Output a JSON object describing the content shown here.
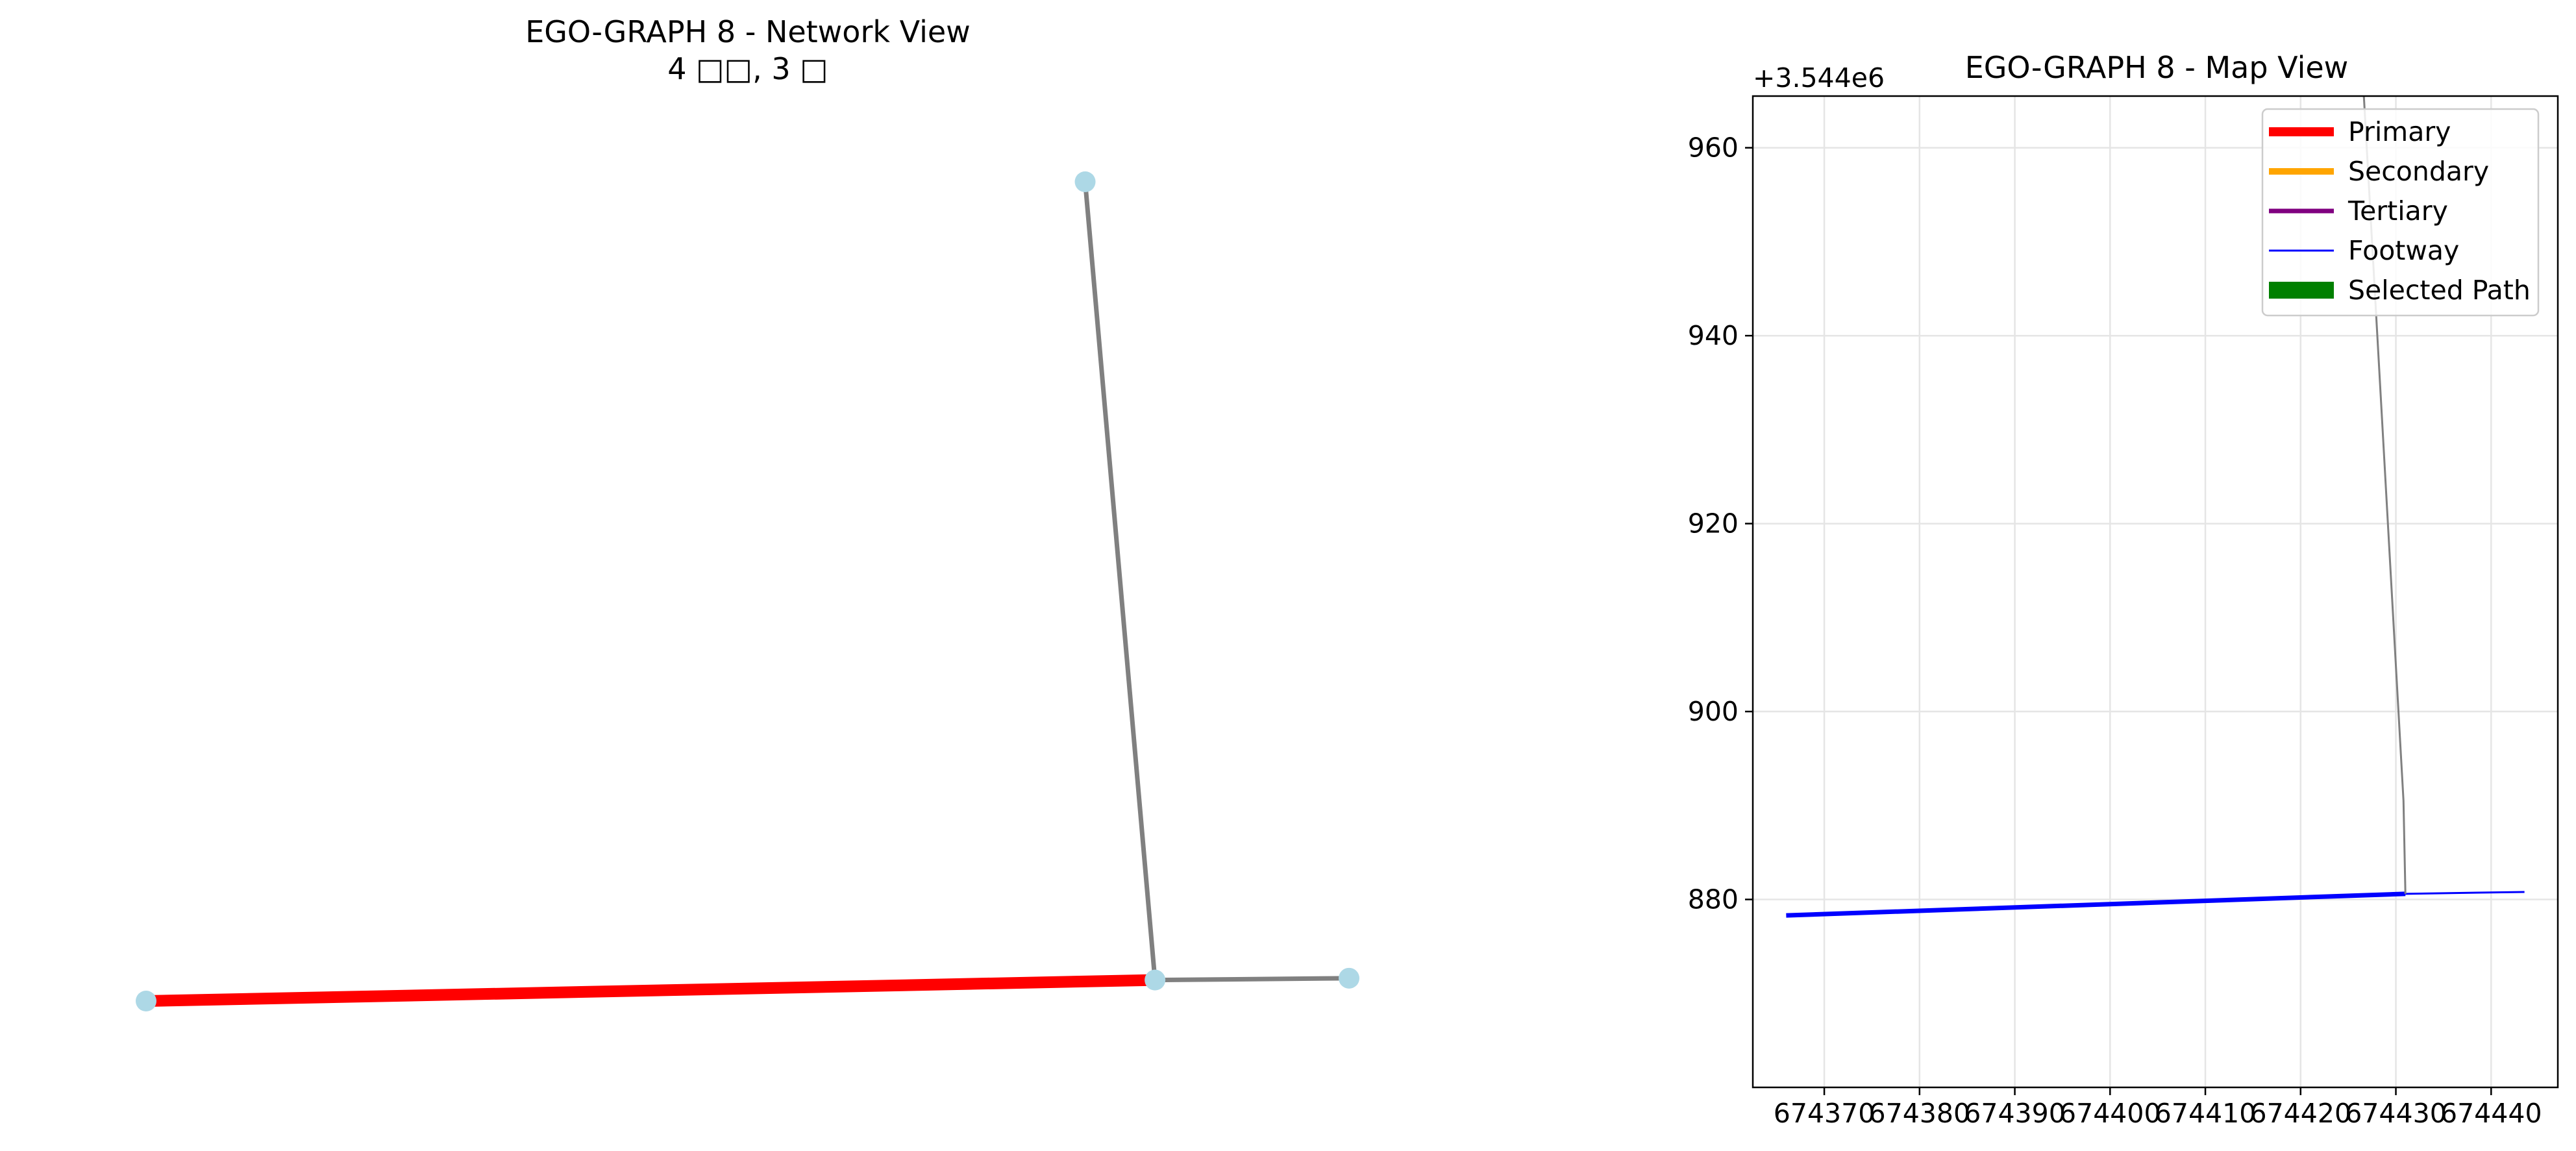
{
  "chart_data": [
    {
      "type": "network",
      "title": "EGO-GRAPH 8 - Network View",
      "subtitle": "4 □□, 3 □",
      "nodes": [
        {
          "id": "n1",
          "x": 674366,
          "y": 3544878.3
        },
        {
          "id": "n2",
          "x": 674431,
          "y": 3544880.6
        },
        {
          "id": "n3",
          "x": 674443.5,
          "y": 3544880.8
        },
        {
          "id": "n4",
          "x": 674426.5,
          "y": 3544968
        }
      ],
      "edges": [
        {
          "source": "n1",
          "target": "n2",
          "highlighted": true
        },
        {
          "source": "n2",
          "target": "n4",
          "highlighted": false
        },
        {
          "source": "n2",
          "target": "n3",
          "highlighted": false
        }
      ],
      "node_color": "#add8e6",
      "edge_color": "#808080",
      "highlight_color": "#ff0000"
    },
    {
      "type": "line",
      "title": "EGO-GRAPH 8 - Map View",
      "y_offset_label": "+3.544e6",
      "xlim": [
        674362.5,
        674447.0
      ],
      "ylim": [
        860.0,
        965.5
      ],
      "x_ticks": [
        674370,
        674380,
        674390,
        674400,
        674410,
        674420,
        674430,
        674440
      ],
      "x_tick_labels": [
        "674370",
        "674380",
        "674390",
        "674400",
        "674410",
        "674420",
        "674430",
        "674440"
      ],
      "y_ticks": [
        880,
        900,
        920,
        940,
        960
      ],
      "y_tick_labels": [
        "880",
        "900",
        "920",
        "940",
        "960"
      ],
      "grid": true,
      "legend_position": "top-right",
      "legend": [
        {
          "label": "Primary",
          "color": "#ff0000",
          "width": 14
        },
        {
          "label": "Secondary",
          "color": "#ffa500",
          "width": 10
        },
        {
          "label": "Tertiary",
          "color": "#800080",
          "width": 7
        },
        {
          "label": "Footway",
          "color": "#0000ff",
          "width": 3
        },
        {
          "label": "Selected Path",
          "color": "#008000",
          "width": 26
        }
      ],
      "series": [
        {
          "color": "#0000ff",
          "width": 7,
          "points": [
            [
              674366,
              878.3
            ],
            [
              674431,
              880.6
            ]
          ]
        },
        {
          "color": "#0000ff",
          "width": 3,
          "points": [
            [
              674431,
              880.6
            ],
            [
              674443.5,
              880.8
            ]
          ]
        },
        {
          "color": "#808080",
          "width": 3,
          "points": [
            [
              674426.5,
              968
            ],
            [
              674430.8,
              890.5
            ],
            [
              674431,
              880.6
            ]
          ]
        }
      ]
    }
  ]
}
